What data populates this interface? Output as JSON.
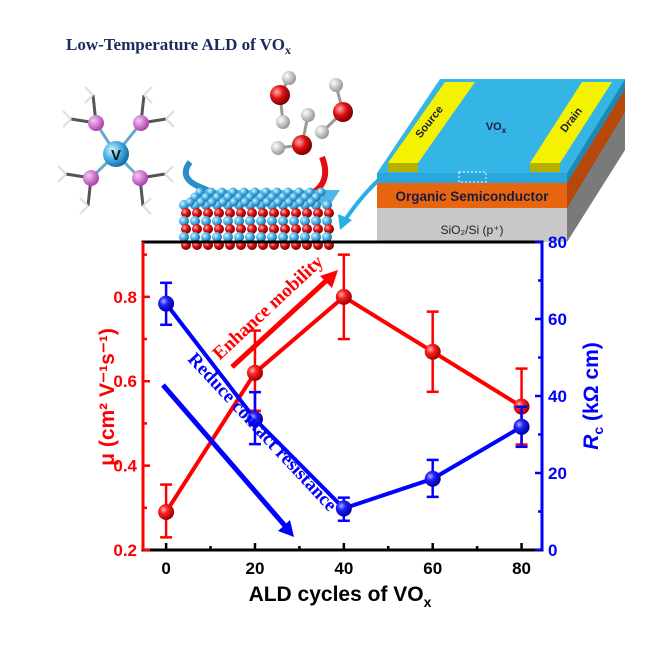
{
  "illustration": {
    "title": "Low-Temperature ALD of VO",
    "title_sub": "x",
    "precursor_center": "V",
    "device": {
      "source": "Source",
      "drain": "Drain",
      "channel": "VO",
      "channel_sub": "x",
      "semiconductor": "Organic Semiconductor",
      "substrate": "SiO₂/Si (p⁺)"
    },
    "colors": {
      "vox": "#35b5e5",
      "organic": "#e8650f",
      "substrate": "#c8c8c8",
      "electrode": "#f4f200",
      "oxygen": "#e01010",
      "ligand": "#d66ad6"
    }
  },
  "chart_data": {
    "type": "line",
    "x": [
      0,
      20,
      40,
      60,
      80
    ],
    "xlabel": "ALD cycles of VO",
    "xlabel_sub": "x",
    "xlim": [
      -5.2,
      84.6
    ],
    "xticks": [
      "0",
      "20",
      "40",
      "60",
      "80"
    ],
    "series": [
      {
        "name": "mobility",
        "axis": "left",
        "color": "#ff0000",
        "values": [
          0.29,
          0.62,
          0.8,
          0.67,
          0.54
        ],
        "err_low": [
          0.23,
          0.53,
          0.7,
          0.575,
          0.45
        ],
        "err_high": [
          0.355,
          0.72,
          0.9,
          0.765,
          0.63
        ]
      },
      {
        "name": "contact resistance",
        "axis": "right",
        "color": "#0000ff",
        "values": [
          64,
          34,
          10.8,
          18.5,
          32
        ],
        "err_low": [
          58.5,
          27.5,
          7.6,
          13.8,
          26.8
        ],
        "err_high": [
          69.4,
          41,
          13.6,
          23.4,
          37.2
        ]
      }
    ],
    "left_axis": {
      "label": "μ (cm² V⁻¹s⁻¹)",
      "ylim": [
        0.2,
        0.93
      ],
      "ticks": [
        "0.2",
        "0.4",
        "0.6",
        "0.8"
      ],
      "color": "#ff0000"
    },
    "right_axis": {
      "label": "R",
      "label_sub": "c",
      "label_rest": " (kΩ cm)",
      "ylim": [
        0,
        80
      ],
      "ticks": [
        "0",
        "20",
        "40",
        "60",
        "80"
      ],
      "color": "#0000ff"
    },
    "annotations": [
      {
        "text": "Enhance mobility",
        "color": "#ff0000"
      },
      {
        "text": "Reduce contact resistance",
        "color": "#0000ff"
      }
    ],
    "grid": false
  }
}
